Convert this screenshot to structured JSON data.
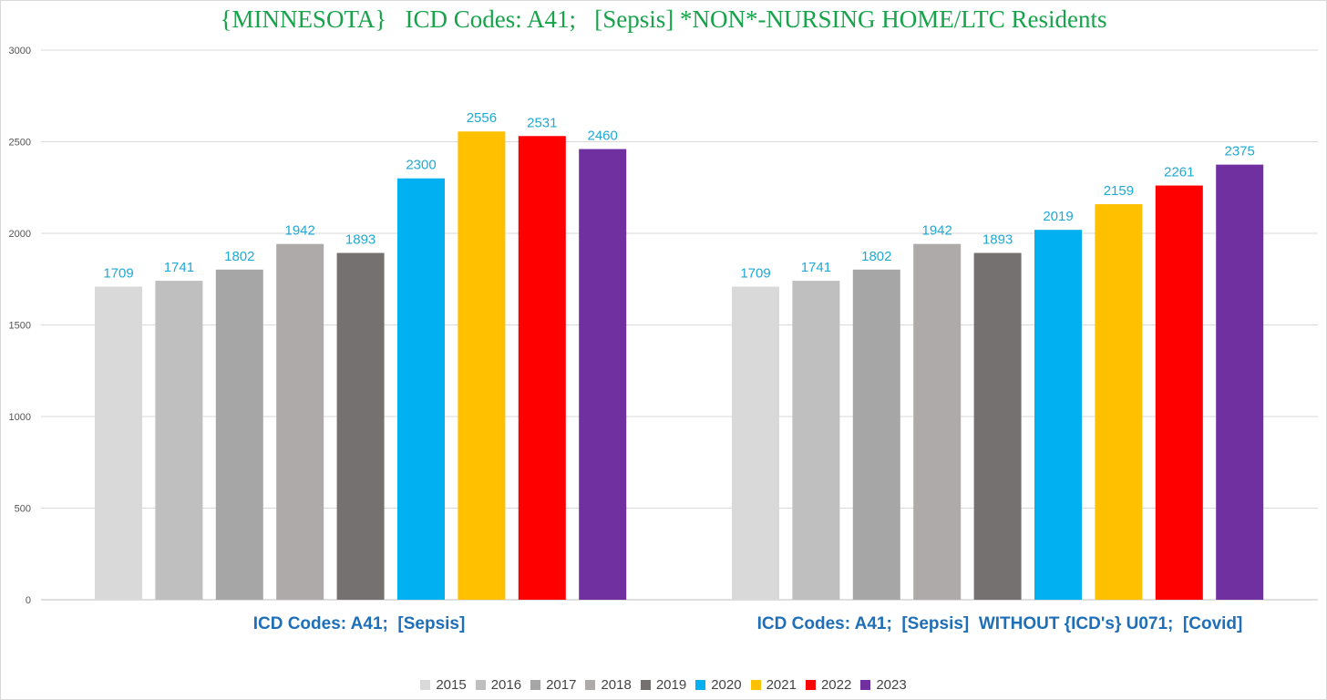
{
  "chart_data": {
    "type": "bar",
    "title": "{MINNESOTA}   ICD Codes: A41;   [Sepsis] *NON*-NURSING HOME/LTC Residents",
    "xlabel": "",
    "ylabel": "",
    "ylim": [
      0,
      3000
    ],
    "yticks": [
      0,
      500,
      1000,
      1500,
      2000,
      2500,
      3000
    ],
    "grid": true,
    "legend_position": "bottom",
    "categories": [
      "ICD Codes: A41;  [Sepsis]",
      "ICD Codes: A41;  [Sepsis]  WITHOUT {ICD's} U071;  [Covid]"
    ],
    "series": [
      {
        "name": "2015",
        "color": "#d9d9d9",
        "values": [
          1709,
          1709
        ]
      },
      {
        "name": "2016",
        "color": "#bfbfbf",
        "values": [
          1741,
          1741
        ]
      },
      {
        "name": "2017",
        "color": "#a6a6a6",
        "values": [
          1802,
          1802
        ]
      },
      {
        "name": "2018",
        "color": "#aeaaaa",
        "values": [
          1942,
          1942
        ]
      },
      {
        "name": "2019",
        "color": "#767171",
        "values": [
          1893,
          1893
        ]
      },
      {
        "name": "2020",
        "color": "#00b0f0",
        "values": [
          2300,
          2019
        ]
      },
      {
        "name": "2021",
        "color": "#ffc000",
        "values": [
          2556,
          2159
        ]
      },
      {
        "name": "2022",
        "color": "#ff0000",
        "values": [
          2531,
          2261
        ]
      },
      {
        "name": "2023",
        "color": "#7030a0",
        "values": [
          2460,
          2375
        ]
      }
    ],
    "data_label_color": "#1fa9d6",
    "axis_color": "#555555",
    "grid_color": "#d9d9d9"
  }
}
